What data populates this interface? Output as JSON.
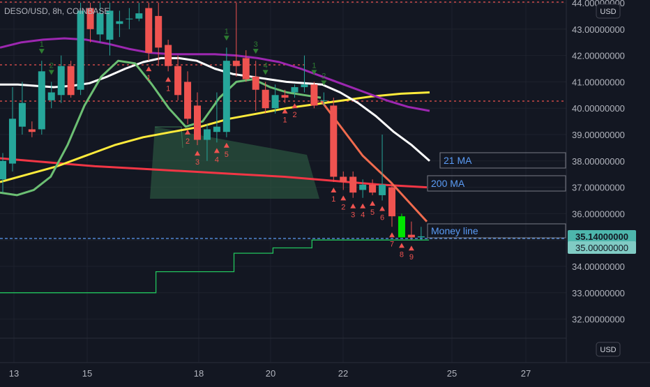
{
  "header": {
    "symbol_line": "DESO/USD, 8h, COINBASE"
  },
  "currency_top": "USD",
  "currency_bottom": "USD",
  "price_axis": [
    "44.00000000",
    "43.00000000",
    "42.00000000",
    "41.00000000",
    "40.00000000",
    "39.00000000",
    "38.00000000",
    "37.00000000",
    "36.00000000",
    "35.00000000",
    "34.00000000",
    "33.00000000",
    "32.00000000"
  ],
  "time_axis": [
    "13",
    "15",
    "18",
    "20",
    "22",
    "25",
    "27"
  ],
  "labels": {
    "ma21": "21 MA",
    "ma200": "200 MA",
    "money_line": "Money line"
  },
  "price_tags": {
    "last": "35.14000000",
    "ref": "35.00000000"
  },
  "colors": {
    "background": "#131722",
    "up": "#26a69a",
    "down": "#ef5350",
    "highlight": "#00e600",
    "ma_white": "#ffffff",
    "ma_yellow": "#ffeb3b",
    "ma_purple": "#9c27b0",
    "ma_red": "#f23645",
    "green_line": "#22c55e",
    "money_line": "#2f6fd6",
    "tag_green": "#4db6ac",
    "tag_teal": "#80cbc4"
  },
  "chart_data": {
    "type": "candlestick",
    "title": "DESO/USD, 8h, COINBASE",
    "ylim": [
      31.2,
      44.05
    ],
    "x_ticks": [
      "13",
      "15",
      "18",
      "20",
      "22",
      "25",
      "27"
    ],
    "candles": [
      {
        "o": 37.3,
        "h": 38.3,
        "l": 36.8,
        "c": 38.0
      },
      {
        "o": 37.9,
        "h": 40.8,
        "l": 37.6,
        "c": 39.6
      },
      {
        "o": 39.3,
        "h": 41.0,
        "l": 39.0,
        "c": 40.2
      },
      {
        "o": 39.2,
        "h": 39.5,
        "l": 38.9,
        "c": 39.1
      },
      {
        "o": 39.2,
        "h": 41.8,
        "l": 39.0,
        "c": 41.4
      },
      {
        "o": 40.3,
        "h": 41.0,
        "l": 40.0,
        "c": 40.6
      },
      {
        "o": 40.5,
        "h": 42.0,
        "l": 40.2,
        "c": 41.6
      },
      {
        "o": 41.6,
        "h": 41.8,
        "l": 40.4,
        "c": 40.5
      },
      {
        "o": 40.7,
        "h": 44.0,
        "l": 40.5,
        "c": 43.7
      },
      {
        "o": 43.8,
        "h": 44.0,
        "l": 42.5,
        "c": 43.0
      },
      {
        "o": 42.8,
        "h": 44.0,
        "l": 42.5,
        "c": 43.6
      },
      {
        "o": 42.6,
        "h": 44.0,
        "l": 42.0,
        "c": 43.7
      },
      {
        "o": 43.2,
        "h": 43.7,
        "l": 42.7,
        "c": 43.3
      },
      {
        "o": 43.4,
        "h": 43.8,
        "l": 43.0,
        "c": 43.4
      },
      {
        "o": 43.4,
        "h": 44.0,
        "l": 43.3,
        "c": 43.6
      },
      {
        "o": 43.8,
        "h": 44.0,
        "l": 41.8,
        "c": 42.1
      },
      {
        "o": 43.5,
        "h": 44.0,
        "l": 41.6,
        "c": 42.3
      },
      {
        "o": 42.4,
        "h": 42.6,
        "l": 41.4,
        "c": 41.6
      },
      {
        "o": 41.6,
        "h": 42.0,
        "l": 40.3,
        "c": 40.5
      },
      {
        "o": 41.0,
        "h": 41.4,
        "l": 39.4,
        "c": 39.6
      },
      {
        "o": 40.1,
        "h": 40.6,
        "l": 38.6,
        "c": 38.8
      },
      {
        "o": 38.8,
        "h": 39.4,
        "l": 38.0,
        "c": 39.2
      },
      {
        "o": 39.1,
        "h": 40.6,
        "l": 38.7,
        "c": 39.3
      },
      {
        "o": 39.1,
        "h": 42.3,
        "l": 38.9,
        "c": 41.8
      },
      {
        "o": 41.8,
        "h": 44.0,
        "l": 41.2,
        "c": 41.6
      },
      {
        "o": 41.9,
        "h": 42.2,
        "l": 41.0,
        "c": 41.1
      },
      {
        "o": 41.2,
        "h": 41.8,
        "l": 39.9,
        "c": 40.7
      },
      {
        "o": 40.7,
        "h": 41.0,
        "l": 39.8,
        "c": 40.0
      },
      {
        "o": 40.0,
        "h": 40.9,
        "l": 39.8,
        "c": 40.5
      },
      {
        "o": 40.5,
        "h": 40.7,
        "l": 40.2,
        "c": 40.4
      },
      {
        "o": 40.6,
        "h": 40.9,
        "l": 40.4,
        "c": 40.8
      },
      {
        "o": 40.8,
        "h": 42.0,
        "l": 40.6,
        "c": 40.9
      },
      {
        "o": 40.9,
        "h": 41.0,
        "l": 40.0,
        "c": 40.1
      },
      {
        "o": 40.3,
        "h": 40.6,
        "l": 40.1,
        "c": 40.3
      },
      {
        "o": 40.1,
        "h": 40.4,
        "l": 37.2,
        "c": 37.4
      },
      {
        "o": 37.4,
        "h": 37.6,
        "l": 36.9,
        "c": 37.2
      },
      {
        "o": 37.4,
        "h": 37.6,
        "l": 36.6,
        "c": 36.8
      },
      {
        "o": 36.9,
        "h": 37.3,
        "l": 36.6,
        "c": 37.1
      },
      {
        "o": 37.1,
        "h": 37.3,
        "l": 36.7,
        "c": 36.8
      },
      {
        "o": 36.7,
        "h": 39.0,
        "l": 36.5,
        "c": 37.1
      },
      {
        "o": 37.0,
        "h": 37.2,
        "l": 35.5,
        "c": 35.9
      },
      {
        "o": 35.1,
        "h": 36.0,
        "l": 35.1,
        "c": 35.9
      },
      {
        "o": 35.2,
        "h": 35.7,
        "l": 35.0,
        "c": 35.1
      },
      {
        "o": 35.1,
        "h": 35.5,
        "l": 35.0,
        "c": 35.14
      }
    ],
    "series": [
      {
        "name": "21 MA",
        "color": "#ffffff"
      },
      {
        "name": "200 MA",
        "color": "#f23645"
      },
      {
        "name": "Money line",
        "color": "#2f6fd6",
        "values": [
          35.0
        ]
      }
    ],
    "ma_white": [
      40.9,
      40.9,
      40.85,
      40.8,
      40.85,
      40.95,
      41.2,
      41.5,
      41.75,
      41.9,
      41.9,
      41.8,
      41.5,
      41.3,
      41.2,
      41.1,
      41.0,
      40.95,
      40.9,
      40.6,
      40.2,
      39.7,
      39.1,
      38.6,
      38.0
    ],
    "ma_purple": [
      42.3,
      42.5,
      42.6,
      42.65,
      42.6,
      42.45,
      42.25,
      42.1,
      42.05,
      42.05,
      42.05,
      42.0,
      41.9,
      41.75,
      41.5,
      41.2,
      40.9,
      40.6,
      40.3,
      40.05,
      39.9
    ],
    "ma_yellow": [
      37.2,
      37.5,
      37.8,
      38.2,
      38.6,
      38.9,
      39.1,
      39.3,
      39.6,
      39.8,
      40.0,
      40.15,
      40.3,
      40.45,
      40.55,
      40.6
    ],
    "ma_red": [
      38.1,
      37.95,
      37.8,
      37.7,
      37.6,
      37.5,
      37.4,
      37.25,
      37.1,
      37.0
    ],
    "ma_green": [
      36.8,
      36.7,
      36.9,
      37.4,
      38.6,
      40.1,
      41.2,
      41.8,
      41.7,
      40.9,
      40.0,
      39.3,
      39.5,
      40.4,
      41.0,
      41.1,
      40.8,
      40.6,
      40.5,
      40.4
    ],
    "trail_line": [
      33.0,
      33.0,
      33.0,
      33.0,
      33.8,
      33.8,
      34.5,
      34.7,
      35.0,
      35.0,
      35.0,
      35.0
    ],
    "td_down_labels": [
      {
        "i": 15,
        "t": "1"
      },
      {
        "i": 17,
        "t": "1"
      },
      {
        "i": 19,
        "t": "2"
      },
      {
        "i": 20,
        "t": "3"
      },
      {
        "i": 22,
        "t": "4"
      },
      {
        "i": 23,
        "t": "5"
      },
      {
        "i": 29,
        "t": "1"
      },
      {
        "i": 30,
        "t": "2"
      },
      {
        "i": 34,
        "t": "1"
      },
      {
        "i": 35,
        "t": "2"
      },
      {
        "i": 36,
        "t": "3"
      },
      {
        "i": 37,
        "t": "4"
      },
      {
        "i": 38,
        "t": "5"
      },
      {
        "i": 39,
        "t": "6"
      },
      {
        "i": 40,
        "t": "7"
      },
      {
        "i": 41,
        "t": "8"
      },
      {
        "i": 42,
        "t": "9"
      }
    ],
    "td_up_labels": [
      {
        "i": 4,
        "t": "1"
      },
      {
        "i": 5,
        "t": "2"
      },
      {
        "i": 8,
        "t": "3"
      },
      {
        "i": 9,
        "t": "4"
      },
      {
        "i": 23,
        "t": "1"
      },
      {
        "i": 26,
        "t": "3"
      },
      {
        "i": 27,
        "t": "4"
      },
      {
        "i": 32,
        "t": "1"
      },
      {
        "i": 33,
        "t": "2"
      }
    ]
  }
}
